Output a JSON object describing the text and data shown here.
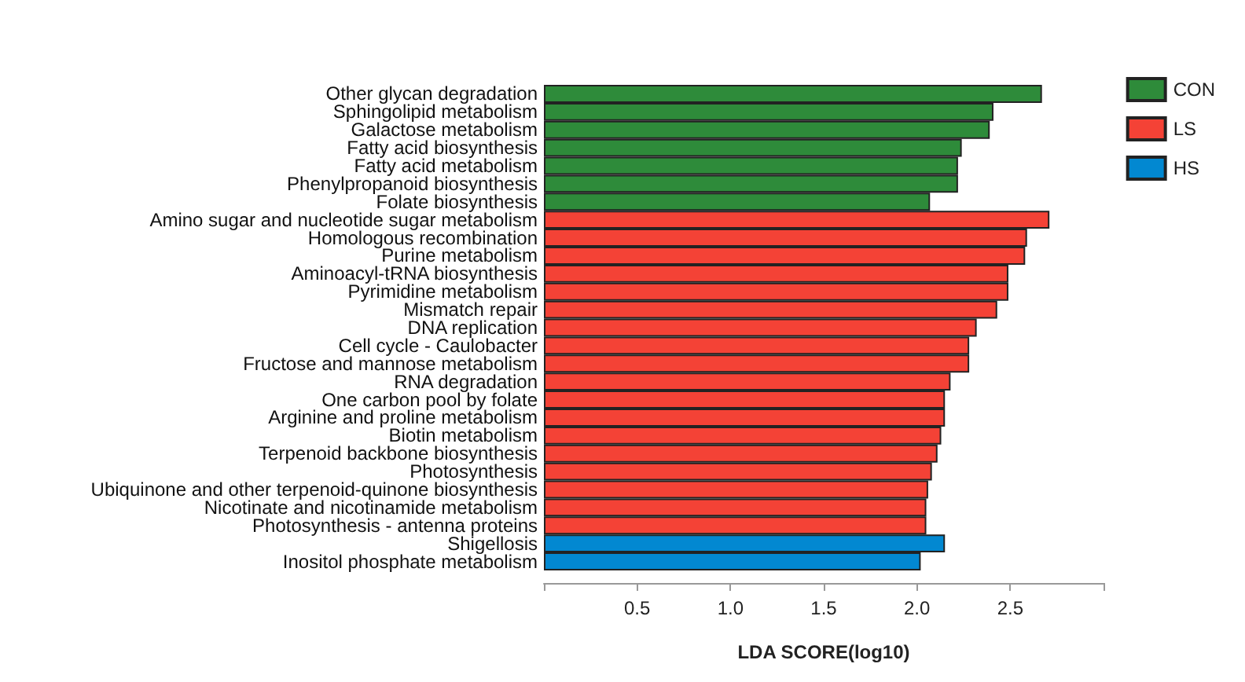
{
  "chart_data": {
    "type": "bar",
    "orientation": "horizontal",
    "xlabel": "LDA SCORE(log10)",
    "categories": [
      "Other glycan degradation",
      "Sphingolipid metabolism",
      "Galactose metabolism",
      "Fatty acid biosynthesis",
      "Fatty acid metabolism",
      "Phenylpropanoid biosynthesis",
      "Folate biosynthesis",
      "Amino sugar and nucleotide sugar metabolism",
      "Homologous recombination",
      "Purine metabolism",
      "Aminoacyl-tRNA biosynthesis",
      "Pyrimidine metabolism",
      "Mismatch repair",
      "DNA replication",
      "Cell cycle - Caulobacter",
      "Fructose and mannose metabolism",
      "RNA degradation",
      "One carbon pool by folate",
      "Arginine and proline metabolism",
      "Biotin metabolism",
      "Terpenoid backbone biosynthesis",
      "Photosynthesis",
      "Ubiquinone and other terpenoid-quinone biosynthesis",
      "Nicotinate and nicotinamide metabolism",
      "Photosynthesis - antenna proteins",
      "Shigellosis",
      "Inositol phosphate metabolism"
    ],
    "series": [
      {
        "name": "CON",
        "color": "#2e8b3a",
        "values": [
          2.67,
          2.41,
          2.39,
          2.24,
          2.22,
          2.22,
          2.07,
          null,
          null,
          null,
          null,
          null,
          null,
          null,
          null,
          null,
          null,
          null,
          null,
          null,
          null,
          null,
          null,
          null,
          null,
          null,
          null
        ]
      },
      {
        "name": "LS",
        "color": "#f44236",
        "values": [
          null,
          null,
          null,
          null,
          null,
          null,
          null,
          2.71,
          2.59,
          2.58,
          2.49,
          2.49,
          2.43,
          2.32,
          2.28,
          2.28,
          2.18,
          2.15,
          2.15,
          2.13,
          2.11,
          2.08,
          2.06,
          2.05,
          2.05,
          null,
          null
        ]
      },
      {
        "name": "HS",
        "color": "#0288d1",
        "values": [
          null,
          null,
          null,
          null,
          null,
          null,
          null,
          null,
          null,
          null,
          null,
          null,
          null,
          null,
          null,
          null,
          null,
          null,
          null,
          null,
          null,
          null,
          null,
          null,
          null,
          2.15,
          2.02
        ]
      }
    ],
    "xlim": [
      0,
      3
    ],
    "xticks": [
      {
        "value": 0,
        "label": null
      },
      0.5,
      {
        "value": 1,
        "label": "1.0"
      },
      1.5,
      {
        "value": 2,
        "label": "2.0"
      },
      2.5,
      {
        "value": 3,
        "label": null
      }
    ],
    "grid": false,
    "legend": "top right"
  }
}
